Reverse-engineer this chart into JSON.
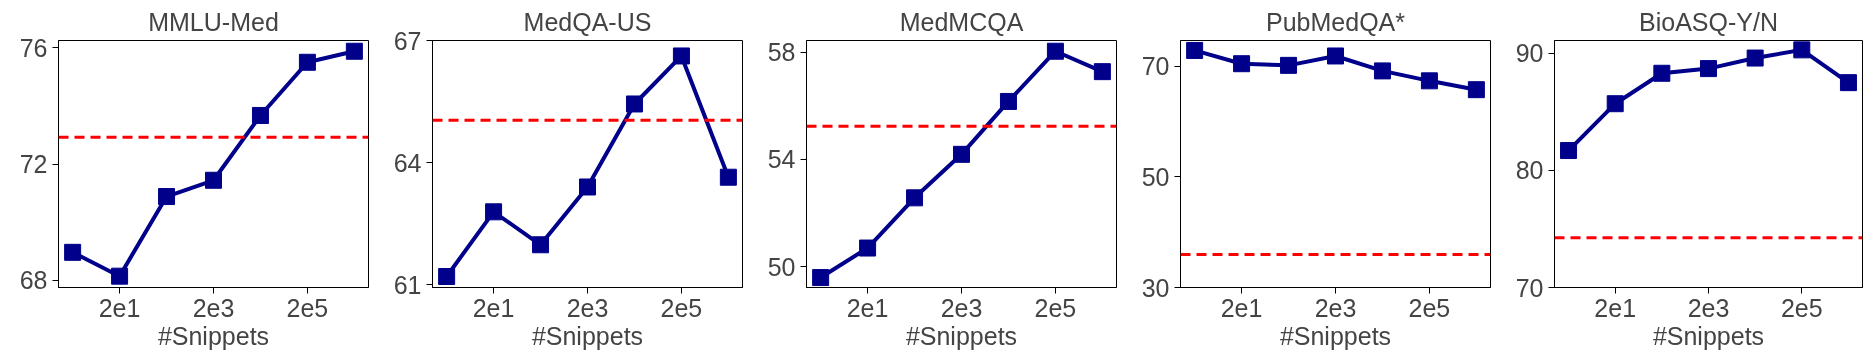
{
  "chart_data": [
    {
      "type": "line",
      "title": "MMLU-Med",
      "xlabel": "#Snippets",
      "log": "x",
      "grid": false,
      "marker": "square",
      "line_style": "solid",
      "x": [
        2,
        20,
        200,
        2000,
        20000,
        200000,
        2000000
      ],
      "xlim": [
        1,
        4000000
      ],
      "xticks": [
        {
          "value": 20,
          "label": "2e1"
        },
        {
          "value": 2000,
          "label": "2e3"
        },
        {
          "value": 200000,
          "label": "2e5"
        }
      ],
      "ylim": [
        67.75,
        76.25
      ],
      "yticks": [
        68,
        72,
        76
      ],
      "series": [
        {
          "color": "#00008b",
          "values": [
            68.96,
            68.14,
            70.88,
            71.44,
            73.67,
            75.5,
            75.88
          ]
        }
      ],
      "ref_lines": [
        {
          "axis": "y",
          "value": 72.92,
          "color": "#ff0000",
          "line_style": "dashed"
        }
      ]
    },
    {
      "type": "line",
      "title": "MedQA-US",
      "xlabel": "#Snippets",
      "log": "x",
      "grid": false,
      "marker": "square",
      "line_style": "solid",
      "x": [
        2,
        20,
        200,
        2000,
        20000,
        200000,
        2000000
      ],
      "xlim": [
        1,
        4000000
      ],
      "xticks": [
        {
          "value": 20,
          "label": "2e1"
        },
        {
          "value": 2000,
          "label": "2e3"
        },
        {
          "value": 200000,
          "label": "2e5"
        }
      ],
      "ylim": [
        60.93,
        67
      ],
      "yticks": [
        61,
        64,
        67
      ],
      "series": [
        {
          "color": "#00008b",
          "values": [
            61.2,
            62.79,
            61.98,
            63.4,
            65.44,
            66.62,
            63.64
          ]
        }
      ],
      "ref_lines": [
        {
          "axis": "y",
          "value": 65.04,
          "color": "#ff0000",
          "line_style": "dashed"
        }
      ]
    },
    {
      "type": "line",
      "title": "MedMCQA",
      "xlabel": "#Snippets",
      "log": "x",
      "grid": false,
      "marker": "square",
      "line_style": "solid",
      "x": [
        2,
        20,
        200,
        2000,
        20000,
        200000,
        2000000
      ],
      "xlim": [
        1,
        4000000
      ],
      "xticks": [
        {
          "value": 20,
          "label": "2e1"
        },
        {
          "value": 2000,
          "label": "2e3"
        },
        {
          "value": 200000,
          "label": "2e5"
        }
      ],
      "ylim": [
        49.23,
        58.43
      ],
      "yticks": [
        50,
        54,
        58
      ],
      "series": [
        {
          "color": "#00008b",
          "values": [
            49.6,
            50.7,
            52.57,
            54.19,
            56.16,
            58.03,
            57.27
          ]
        }
      ],
      "ref_lines": [
        {
          "axis": "y",
          "value": 55.24,
          "color": "#ff0000",
          "line_style": "dashed"
        }
      ]
    },
    {
      "type": "line",
      "title": "PubMedQA*",
      "xlabel": "#Snippets",
      "log": "x",
      "grid": false,
      "marker": "square",
      "line_style": "solid",
      "x": [
        2,
        20,
        200,
        2000,
        20000,
        200000,
        2000000
      ],
      "xlim": [
        1,
        4000000
      ],
      "xticks": [
        {
          "value": 20,
          "label": "2e1"
        },
        {
          "value": 2000,
          "label": "2e3"
        },
        {
          "value": 200000,
          "label": "2e5"
        }
      ],
      "ylim": [
        30,
        74.7
      ],
      "yticks": [
        30,
        50,
        70
      ],
      "series": [
        {
          "color": "#00008b",
          "values": [
            72.9,
            70.5,
            70.2,
            71.9,
            69.2,
            67.4,
            65.8
          ]
        }
      ],
      "ref_lines": [
        {
          "axis": "y",
          "value": 35.96,
          "color": "#ff0000",
          "line_style": "dashed"
        }
      ]
    },
    {
      "type": "line",
      "title": "BioASQ-Y/N",
      "xlabel": "#Snippets",
      "log": "x",
      "grid": false,
      "marker": "square",
      "line_style": "solid",
      "x": [
        2,
        20,
        200,
        2000,
        20000,
        200000,
        2000000
      ],
      "xlim": [
        1,
        4000000
      ],
      "xticks": [
        {
          "value": 20,
          "label": "2e1"
        },
        {
          "value": 2000,
          "label": "2e3"
        },
        {
          "value": 200000,
          "label": "2e5"
        }
      ],
      "ylim": [
        70,
        91.1
      ],
      "yticks": [
        70,
        80,
        90
      ],
      "series": [
        {
          "color": "#00008b",
          "values": [
            81.7,
            85.7,
            88.3,
            88.7,
            89.6,
            90.3,
            87.5
          ]
        }
      ],
      "ref_lines": [
        {
          "axis": "y",
          "value": 74.26,
          "color": "#ff0000",
          "line_style": "dashed"
        }
      ]
    }
  ]
}
